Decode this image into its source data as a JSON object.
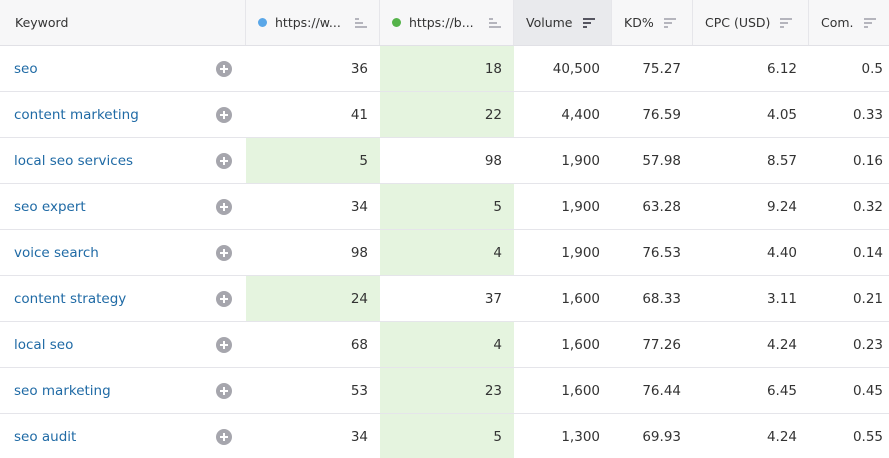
{
  "header": {
    "keyword": "Keyword",
    "domain1": "https://w...",
    "domain2": "https://b...",
    "volume": "Volume",
    "kd": "KD%",
    "cpc": "CPC (USD)",
    "com": "Com."
  },
  "colors": {
    "domain1_dot": "#5aa7e8",
    "domain2_dot": "#55b34a",
    "highlight": "#e5f4df",
    "link": "#1f6aa5"
  },
  "icons": {
    "sort": "sort-lines-icon",
    "add": "plus-circle-icon"
  },
  "rows": [
    {
      "keyword": "seo",
      "d1": "36",
      "d2": "18",
      "volume": "40,500",
      "kd": "75.27",
      "cpc": "6.12",
      "com": "0.5",
      "best": "d2"
    },
    {
      "keyword": "content marketing",
      "d1": "41",
      "d2": "22",
      "volume": "4,400",
      "kd": "76.59",
      "cpc": "4.05",
      "com": "0.33",
      "best": "d2"
    },
    {
      "keyword": "local seo services",
      "d1": "5",
      "d2": "98",
      "volume": "1,900",
      "kd": "57.98",
      "cpc": "8.57",
      "com": "0.16",
      "best": "d1"
    },
    {
      "keyword": "seo expert",
      "d1": "34",
      "d2": "5",
      "volume": "1,900",
      "kd": "63.28",
      "cpc": "9.24",
      "com": "0.32",
      "best": "d2"
    },
    {
      "keyword": "voice search",
      "d1": "98",
      "d2": "4",
      "volume": "1,900",
      "kd": "76.53",
      "cpc": "4.40",
      "com": "0.14",
      "best": "d2"
    },
    {
      "keyword": "content strategy",
      "d1": "24",
      "d2": "37",
      "volume": "1,600",
      "kd": "68.33",
      "cpc": "3.11",
      "com": "0.21",
      "best": "d1"
    },
    {
      "keyword": "local seo",
      "d1": "68",
      "d2": "4",
      "volume": "1,600",
      "kd": "77.26",
      "cpc": "4.24",
      "com": "0.23",
      "best": "d2"
    },
    {
      "keyword": "seo marketing",
      "d1": "53",
      "d2": "23",
      "volume": "1,600",
      "kd": "76.44",
      "cpc": "6.45",
      "com": "0.45",
      "best": "d2"
    },
    {
      "keyword": "seo audit",
      "d1": "34",
      "d2": "5",
      "volume": "1,300",
      "kd": "69.93",
      "cpc": "4.24",
      "com": "0.55",
      "best": "d2"
    }
  ]
}
